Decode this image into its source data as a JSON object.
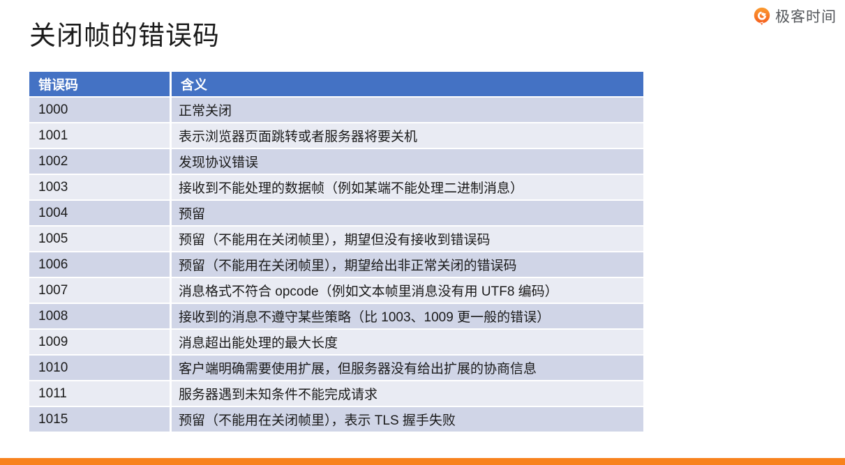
{
  "page": {
    "title": "关闭帧的错误码"
  },
  "brand": {
    "name": "极客时间",
    "icon": "geektime-logo-icon",
    "icon_color": "#F5641E",
    "text_color": "#53565A"
  },
  "colors": {
    "header_bg": "#4472C4",
    "row_dark": "#D0D5E7",
    "row_light": "#E9EBF3",
    "footer_bar": "#F8821D",
    "title_text": "#1B1B1B"
  },
  "table": {
    "headers": [
      "错误码",
      "含义"
    ],
    "rows": [
      [
        "1000",
        "正常关闭"
      ],
      [
        "1001",
        "表示浏览器页面跳转或者服务器将要关机"
      ],
      [
        "1002",
        "发现协议错误"
      ],
      [
        "1003",
        "接收到不能处理的数据帧（例如某端不能处理二进制消息）"
      ],
      [
        "1004",
        "预留"
      ],
      [
        "1005",
        "预留（不能用在关闭帧里），期望但没有接收到错误码"
      ],
      [
        "1006",
        "预留（不能用在关闭帧里），期望给出非正常关闭的错误码"
      ],
      [
        "1007",
        "消息格式不符合 opcode（例如文本帧里消息没有用 UTF8 编码）"
      ],
      [
        "1008",
        "接收到的消息不遵守某些策略（比 1003、1009 更一般的错误）"
      ],
      [
        "1009",
        "消息超出能处理的最大长度"
      ],
      [
        "1010",
        "客户端明确需要使用扩展，但服务器没有给出扩展的协商信息"
      ],
      [
        "1011",
        "服务器遇到未知条件不能完成请求"
      ],
      [
        "1015",
        "预留（不能用在关闭帧里），表示 TLS 握手失败"
      ]
    ]
  }
}
